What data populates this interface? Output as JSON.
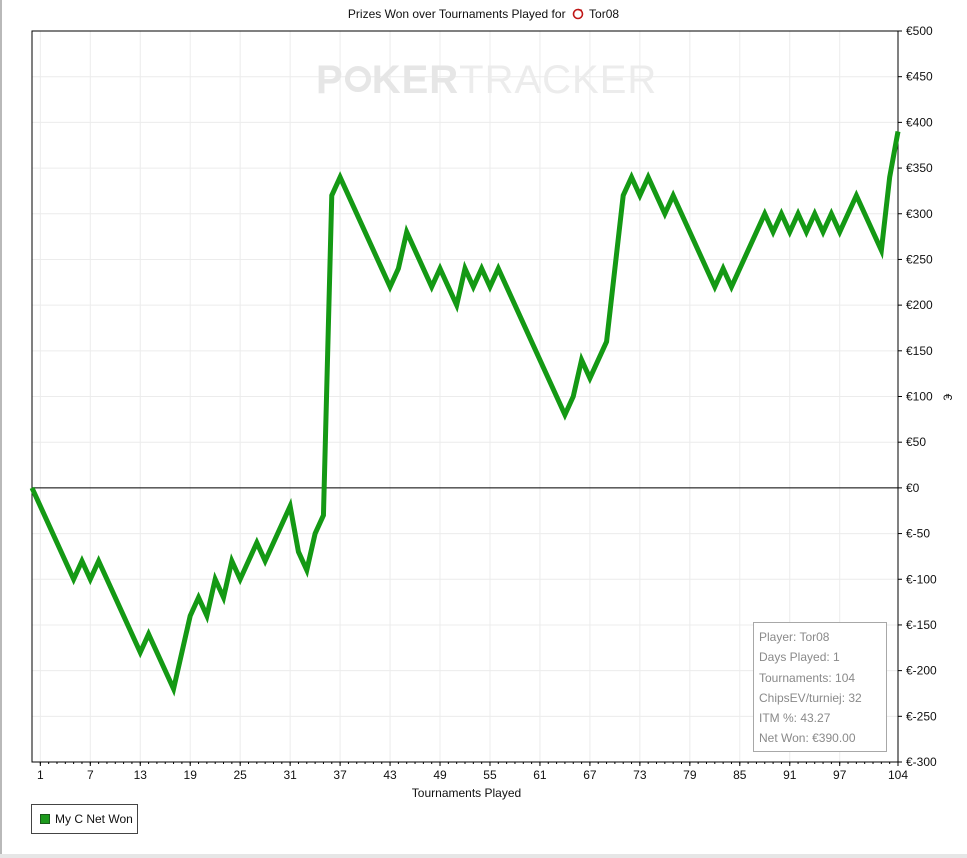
{
  "title": {
    "prefix": "Prizes Won over Tournaments Played for",
    "player": "Tor08"
  },
  "watermark": {
    "left": "P",
    "mid": "KER",
    "right": "TRACKER"
  },
  "stats": {
    "player": "Player: Tor08",
    "days_played": "Days Played: 1",
    "tournaments": "Tournaments: 104",
    "chipsev": "ChipsEV/turniej: 32",
    "itm": "ITM %: 43.27",
    "net_won": "Net Won: €390.00"
  },
  "legend": {
    "label": "My C Net Won"
  },
  "colors": {
    "series": "#149914",
    "zero_line": "#000000",
    "grid": "#ececec"
  },
  "chart_data": {
    "type": "line",
    "title": "Prizes Won over Tournaments Played for Tor08",
    "xlabel": "Tournaments Played",
    "ylabel": "€",
    "xlim": [
      0,
      104
    ],
    "ylim": [
      -300,
      500
    ],
    "grid": true,
    "legend_position": "bottom-left",
    "x_ticks": [
      1,
      7,
      13,
      19,
      25,
      31,
      37,
      43,
      49,
      55,
      61,
      67,
      73,
      79,
      85,
      91,
      97,
      104
    ],
    "y_ticks": [
      500,
      450,
      400,
      350,
      300,
      250,
      200,
      150,
      100,
      50,
      0,
      -50,
      -100,
      -150,
      -200,
      -250,
      -300
    ],
    "y_tick_labels": [
      "€500",
      "€450",
      "€400",
      "€350",
      "€300",
      "€250",
      "€200",
      "€150",
      "€100",
      "€50",
      "€0",
      "€-50",
      "€-100",
      "€-150",
      "€-200",
      "€-250",
      "€-300"
    ],
    "series": [
      {
        "name": "My C Net Won",
        "x": [
          0,
          5,
          6,
          7,
          8,
          13,
          14,
          17,
          19,
          20,
          21,
          22,
          23,
          24,
          25,
          27,
          28,
          31,
          32,
          33,
          34,
          35,
          36,
          37,
          43,
          44,
          45,
          48,
          49,
          51,
          52,
          53,
          54,
          55,
          56,
          64,
          65,
          66,
          67,
          69,
          71,
          72,
          73,
          74,
          76,
          77,
          82,
          83,
          84,
          88,
          89,
          90,
          91,
          92,
          93,
          94,
          95,
          96,
          97,
          99,
          102,
          103,
          104
        ],
        "y": [
          0,
          -100,
          -80,
          -100,
          -80,
          -180,
          -160,
          -220,
          -140,
          -120,
          -140,
          -100,
          -120,
          -80,
          -100,
          -60,
          -80,
          -20,
          -70,
          -90,
          -50,
          -30,
          320,
          340,
          220,
          240,
          280,
          220,
          240,
          200,
          240,
          220,
          240,
          220,
          240,
          80,
          100,
          140,
          120,
          160,
          320,
          340,
          320,
          340,
          300,
          320,
          220,
          240,
          220,
          300,
          280,
          300,
          280,
          300,
          280,
          300,
          280,
          300,
          280,
          320,
          260,
          340,
          390
        ]
      }
    ]
  }
}
